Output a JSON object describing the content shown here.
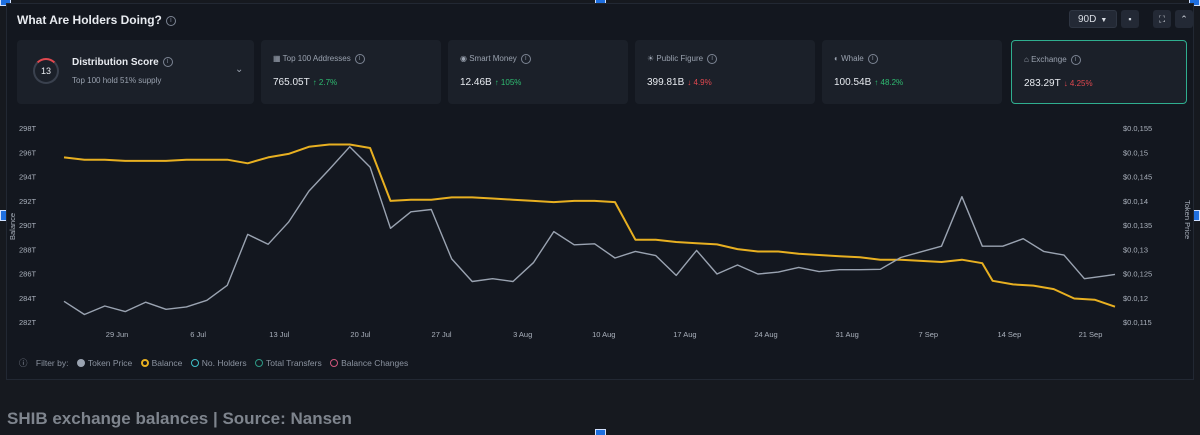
{
  "header": {
    "title": "What Are Holders Doing?",
    "period_label": "90D"
  },
  "distribution": {
    "score": "13",
    "label": "Distribution Score",
    "sub": "Top 100 hold 51% supply"
  },
  "metrics": [
    {
      "label": "Top 100 Addresses",
      "value": "765.05T",
      "change": "↑ 2.7%",
      "dir": "up",
      "icon": "grid-icon"
    },
    {
      "label": "Smart Money",
      "value": "12.46B",
      "change": "↑ 105%",
      "dir": "up",
      "icon": "brain-icon"
    },
    {
      "label": "Public Figure",
      "value": "399.81B",
      "change": "↓ 4.9%",
      "dir": "down",
      "icon": "bulb-icon"
    },
    {
      "label": "Whale",
      "value": "100.54B",
      "change": "↑ 48.2%",
      "dir": "up",
      "icon": "whale-icon"
    },
    {
      "label": "Exchange",
      "value": "283.29T",
      "change": "↓ 4.25%",
      "dir": "down",
      "icon": "bank-icon"
    }
  ],
  "legend": {
    "filter_label": "Filter by:",
    "items": [
      "Token Price",
      "Balance",
      "No. Holders",
      "Total Transfers",
      "Balance Changes"
    ]
  },
  "caption": "SHIB exchange balances | Source: Nansen",
  "colors": {
    "balance": "#e8b021",
    "price": "#9aa3b1",
    "accent_green": "#2fbd72",
    "accent_red": "#e0484f"
  },
  "chart_data": {
    "type": "line",
    "x_ticks": [
      "29 Jun",
      "6 Jul",
      "13 Jul",
      "20 Jul",
      "27 Jul",
      "3 Aug",
      "10 Aug",
      "17 Aug",
      "24 Aug",
      "31 Aug",
      "7 Sep",
      "14 Sep",
      "21 Sep"
    ],
    "ylabel_left": "Balance",
    "ylabel_right": "Token Price",
    "yticks_left": [
      "298T",
      "296T",
      "294T",
      "292T",
      "290T",
      "288T",
      "286T",
      "284T",
      "282T"
    ],
    "yticks_right": [
      "$0.0,155",
      "$0.0,15",
      "$0.0,145",
      "$0.0,14",
      "$0.0,135",
      "$0.0,13",
      "$0.0,125",
      "$0.0,12",
      "$0.0,115"
    ],
    "ylim_left": [
      282,
      298.5
    ],
    "ylim_right": [
      0.1146,
      0.1558
    ],
    "series": [
      {
        "name": "Balance",
        "axis": "left",
        "x": [
          0,
          2,
          4,
          6,
          8,
          10,
          12,
          14,
          16,
          18,
          20,
          22,
          24,
          26,
          28,
          30,
          32,
          34,
          36,
          38,
          40,
          42,
          44,
          46,
          48,
          50,
          52,
          54,
          56,
          58,
          60,
          62,
          64,
          66,
          68,
          70,
          72,
          74,
          76,
          78,
          80,
          82,
          84,
          86,
          88,
          90,
          91,
          93,
          95,
          97,
          99,
          101,
          103
        ],
        "values": [
          296,
          295.8,
          295.8,
          295.7,
          295.7,
          295.7,
          295.8,
          295.8,
          295.8,
          295.5,
          296,
          296.3,
          296.9,
          297.1,
          297.1,
          296.8,
          292.3,
          292.4,
          292.4,
          292.6,
          292.6,
          292.5,
          292.4,
          292.3,
          292.2,
          292.3,
          292.3,
          292.2,
          289,
          289,
          288.8,
          288.7,
          288.6,
          288.2,
          288,
          288,
          287.8,
          287.7,
          287.6,
          287.5,
          287.3,
          287.3,
          287.2,
          287.1,
          287.3,
          287,
          285.5,
          285.2,
          285.1,
          284.8,
          284,
          283.9,
          283.3
        ]
      },
      {
        "name": "Token Price",
        "axis": "right",
        "x": [
          0,
          2,
          4,
          6,
          8,
          10,
          12,
          14,
          16,
          18,
          20,
          22,
          24,
          26,
          28,
          30,
          32,
          34,
          36,
          38,
          40,
          42,
          44,
          46,
          48,
          50,
          52,
          54,
          56,
          58,
          60,
          62,
          64,
          66,
          68,
          70,
          72,
          74,
          76,
          78,
          80,
          82,
          84,
          86,
          88,
          90,
          92,
          94,
          96,
          98,
          100,
          102,
          103
        ],
        "values": [
          0.119,
          0.1162,
          0.118,
          0.1168,
          0.1188,
          0.1173,
          0.1178,
          0.1192,
          0.1224,
          0.1332,
          0.1311,
          0.1358,
          0.1424,
          0.147,
          0.1518,
          0.1475,
          0.1345,
          0.138,
          0.1385,
          0.128,
          0.1232,
          0.1238,
          0.1232,
          0.1272,
          0.1338,
          0.131,
          0.1312,
          0.1282,
          0.1296,
          0.1287,
          0.1245,
          0.1298,
          0.1248,
          0.1267,
          0.1248,
          0.1252,
          0.1262,
          0.1253,
          0.1257,
          0.1257,
          0.1258,
          0.1283,
          0.1295,
          0.1307,
          0.1412,
          0.1307,
          0.1307,
          0.1323,
          0.1296,
          0.1288,
          0.1238,
          0.1244,
          0.1247
        ]
      }
    ]
  }
}
